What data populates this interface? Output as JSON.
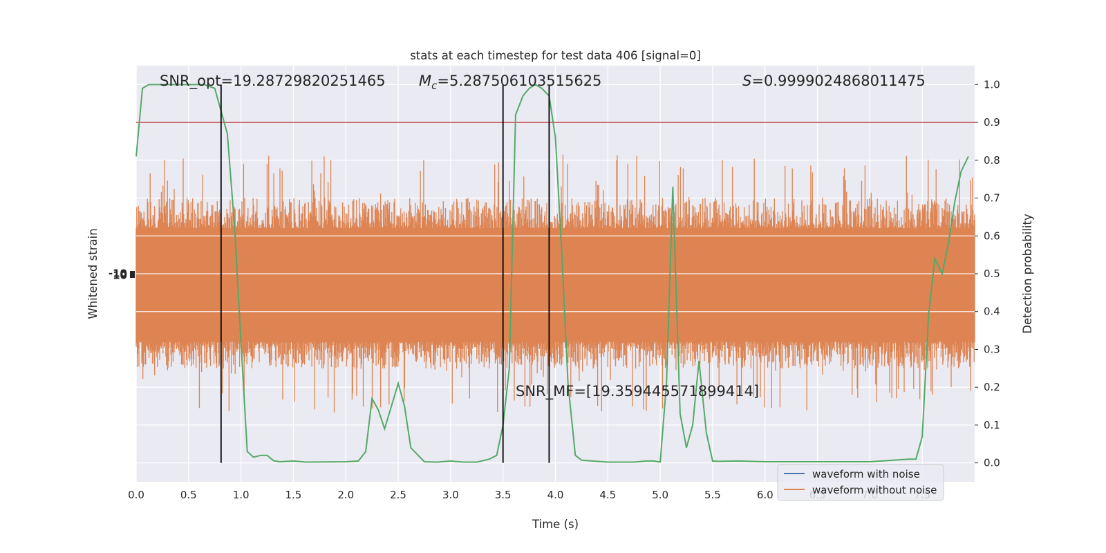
{
  "chart_data": {
    "type": "line",
    "title": "stats at each timestep for test data 406 [signal=0]",
    "xlabel": "Time (s)",
    "ylabel_left": "Whitened strain",
    "ylabel_right": "Detection probability",
    "xlim": [
      0,
      8
    ],
    "ylim_right": [
      -0.05,
      1.05
    ],
    "x_ticks": [
      "0.0",
      "0.5",
      "1.0",
      "1.5",
      "2.0",
      "2.5",
      "3.0",
      "3.5",
      "4.0",
      "4.5",
      "5.0",
      "5.5",
      "6.0",
      "6.5",
      "7.0",
      "7.5"
    ],
    "y_ticks_right": [
      "0.0",
      "0.1",
      "0.2",
      "0.3",
      "0.4",
      "0.5",
      "0.6",
      "0.7",
      "0.8",
      "0.9",
      "1.0"
    ],
    "grid": true,
    "annotations": {
      "snr_opt": "SNR_opt=19.28729820251465",
      "mc_symbol": "M",
      "mc_sub": "c",
      "mc_value": "=5.287506103515625",
      "s_symbol": "S",
      "s_value": "=0.9999024868011475",
      "snr_mf": "SNR_MF=[19.359445571899414]"
    },
    "threshold": {
      "value": 0.9,
      "color": "#c44e52"
    },
    "vertical_lines": [
      0.81,
      3.5,
      3.94
    ],
    "strain_band": {
      "color": "#dd8452",
      "core_top_prob": 0.62,
      "core_bottom_prob": 0.32,
      "peak_top_prob": 0.79,
      "peak_bottom_prob": 0.17
    },
    "series": [
      {
        "name": "waveform with noise",
        "color": "#4c72b0",
        "x": [],
        "y": []
      },
      {
        "name": "waveform without noise",
        "color": "#dd8452",
        "x": [],
        "y": []
      },
      {
        "color": "#55a868",
        "x": [
          0.0,
          0.06,
          0.12,
          0.25,
          0.5,
          0.65,
          0.75,
          0.81,
          0.87,
          0.94,
          1.0,
          1.06,
          1.12,
          1.19,
          1.25,
          1.31,
          1.37,
          1.5,
          1.62,
          2.0,
          2.12,
          2.19,
          2.25,
          2.31,
          2.37,
          2.5,
          2.56,
          2.62,
          2.69,
          2.75,
          2.87,
          3.0,
          3.12,
          3.25,
          3.37,
          3.44,
          3.5,
          3.56,
          3.62,
          3.69,
          3.75,
          3.81,
          3.87,
          3.94,
          4.0,
          4.06,
          4.12,
          4.19,
          4.25,
          4.5,
          4.75,
          4.87,
          4.94,
          5.0,
          5.06,
          5.12,
          5.19,
          5.25,
          5.31,
          5.37,
          5.44,
          5.5,
          5.56,
          5.75,
          6.0,
          6.5,
          7.0,
          7.37,
          7.44,
          7.5,
          7.56,
          7.62,
          7.69,
          7.75,
          7.81,
          7.87,
          7.94
        ],
        "y": [
          0.81,
          0.99,
          1.0,
          1.0,
          1.0,
          1.0,
          0.99,
          0.93,
          0.87,
          0.62,
          0.32,
          0.03,
          0.015,
          0.02,
          0.02,
          0.006,
          0.003,
          0.005,
          0.002,
          0.003,
          0.005,
          0.03,
          0.17,
          0.14,
          0.09,
          0.21,
          0.15,
          0.04,
          0.02,
          0.003,
          0.002,
          0.005,
          0.002,
          0.002,
          0.01,
          0.02,
          0.1,
          0.25,
          0.92,
          0.97,
          0.99,
          1.0,
          0.99,
          0.97,
          0.86,
          0.56,
          0.21,
          0.02,
          0.007,
          0.002,
          0.002,
          0.005,
          0.005,
          0.002,
          0.21,
          0.73,
          0.13,
          0.04,
          0.1,
          0.27,
          0.08,
          0.005,
          0.004,
          0.005,
          0.003,
          0.003,
          0.003,
          0.01,
          0.01,
          0.07,
          0.39,
          0.54,
          0.5,
          0.58,
          0.69,
          0.77,
          0.81
        ]
      }
    ],
    "legend": {
      "placement": "lower right",
      "entries": [
        "waveform with noise",
        "waveform without noise"
      ]
    },
    "left_axis_tick_labels": [
      "-10",
      "0",
      "10"
    ]
  }
}
